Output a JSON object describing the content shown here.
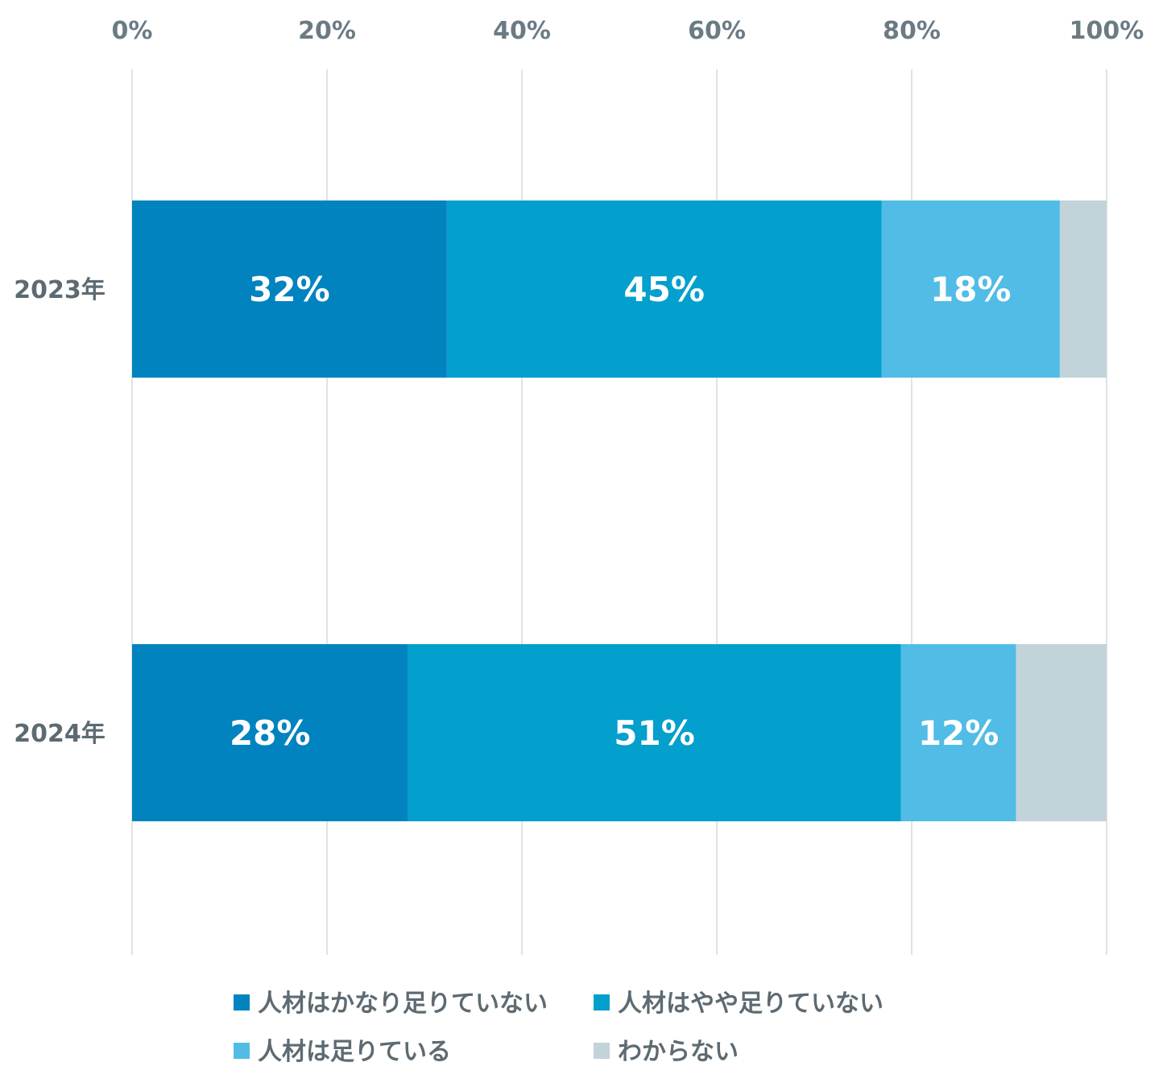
{
  "chart_data": {
    "type": "bar",
    "orientation": "horizontal",
    "stacked": true,
    "categories": [
      "2023年",
      "2024年"
    ],
    "xlim": [
      0,
      100
    ],
    "x_ticks": [
      "0%",
      "20%",
      "40%",
      "60%",
      "80%",
      "100%"
    ],
    "grid": true,
    "legend_position": "bottom",
    "series": [
      {
        "name": "人材はかなり足りていない",
        "color": "#0083bf",
        "values": [
          32.3,
          28.3
        ],
        "labels": [
          "32%",
          "28%"
        ]
      },
      {
        "name": "人材はやや足りていない",
        "color": "#039fcd",
        "values": [
          44.6,
          50.6
        ],
        "labels": [
          "45%",
          "51%"
        ]
      },
      {
        "name": "人材は足りている",
        "color": "#51bce5",
        "values": [
          18.3,
          11.8
        ],
        "labels": [
          "18%",
          "12%"
        ]
      },
      {
        "name": "わからない",
        "color": "#c2d3da",
        "values": [
          4.8,
          9.3
        ],
        "labels": [
          "",
          ""
        ]
      }
    ]
  }
}
